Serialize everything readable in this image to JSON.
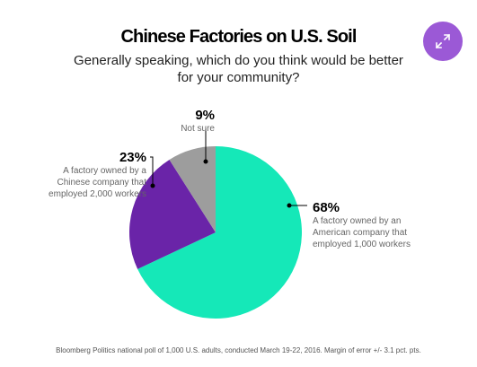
{
  "header": {
    "title": "Chinese Factories on U.S. Soil",
    "subtitle_line1": "Generally speaking, which do you think would be better",
    "subtitle_line2": "for your community?"
  },
  "expand_icon": "expand-arrows-icon",
  "colors": {
    "accent": "#9b59d6"
  },
  "chart_data": {
    "type": "pie",
    "slices": [
      {
        "value": 68,
        "pct_label": "68%",
        "label_lines": [
          "A factory owned by an",
          "American company that",
          "employed 1,000 workers"
        ],
        "color": "#15e8b8"
      },
      {
        "value": 23,
        "pct_label": "23%",
        "label_lines": [
          "A factory owned by a",
          "Chinese company that",
          "employed 2,000 workers"
        ],
        "color": "#6a24a8"
      },
      {
        "value": 9,
        "pct_label": "9%",
        "label_lines": [
          "Not sure"
        ],
        "color": "#9d9d9d"
      }
    ]
  },
  "footnote": "Bloomberg Politics national poll of 1,000 U.S. adults, conducted March 19-22, 2016. Margin of error +/- 3.1 pct. pts."
}
